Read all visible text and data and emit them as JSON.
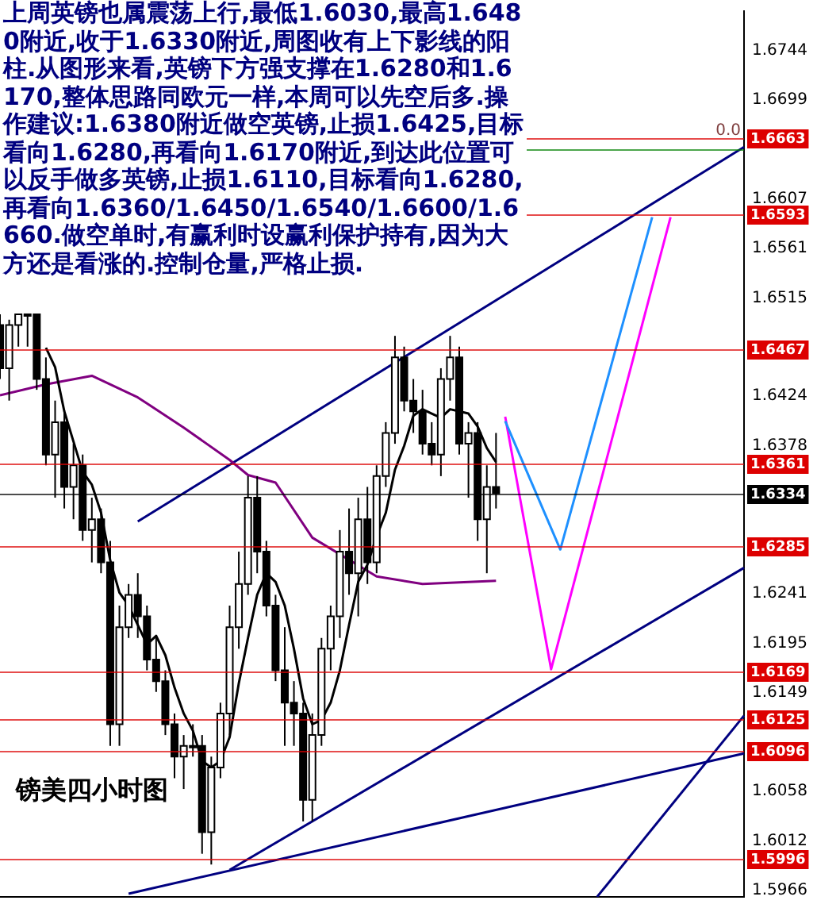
{
  "chart_data": {
    "type": "candlestick",
    "categories": [
      null,
      null,
      null,
      null,
      null,
      null,
      null,
      null,
      null,
      null,
      null,
      null,
      null,
      null,
      null,
      null,
      null,
      null,
      null,
      null,
      null,
      null,
      null,
      null,
      null,
      null,
      null,
      null,
      null,
      null,
      null,
      null,
      null,
      null,
      null,
      null,
      null,
      null,
      null,
      null,
      null,
      null,
      null,
      null,
      null,
      null,
      null,
      null,
      null,
      null,
      null,
      null,
      null,
      null,
      null,
      null,
      null,
      null,
      null,
      null,
      null,
      null,
      null,
      null,
      null,
      null,
      null,
      null,
      null,
      null,
      null,
      null,
      null,
      null,
      null,
      null,
      null,
      null,
      null,
      null,
      null,
      null
    ],
    "ohlc": [
      [
        1.649,
        1.65,
        1.644,
        1.645
      ],
      [
        1.645,
        1.6495,
        1.642,
        1.649
      ],
      [
        1.649,
        1.65,
        1.647,
        1.65
      ],
      [
        1.65,
        1.65,
        1.647,
        1.65
      ],
      [
        1.65,
        1.65,
        1.643,
        1.644
      ],
      [
        1.644,
        1.646,
        1.636,
        1.637
      ],
      [
        1.637,
        1.642,
        1.633,
        1.64
      ],
      [
        1.64,
        1.641,
        1.632,
        1.634
      ],
      [
        1.634,
        1.638,
        1.631,
        1.636
      ],
      [
        1.636,
        1.637,
        1.629,
        1.63
      ],
      [
        1.63,
        1.633,
        1.627,
        1.631
      ],
      [
        1.631,
        1.632,
        1.626,
        1.627
      ],
      [
        1.627,
        1.629,
        1.61,
        1.612
      ],
      [
        1.612,
        1.623,
        1.61,
        1.621
      ],
      [
        1.621,
        1.625,
        1.62,
        1.624
      ],
      [
        1.624,
        1.626,
        1.62,
        1.622
      ],
      [
        1.622,
        1.623,
        1.617,
        1.618
      ],
      [
        1.618,
        1.62,
        1.615,
        1.616
      ],
      [
        1.616,
        1.617,
        1.611,
        1.612
      ],
      [
        1.612,
        1.613,
        1.607,
        1.609
      ],
      [
        1.609,
        1.611,
        1.606,
        1.61
      ],
      [
        1.61,
        1.612,
        1.609,
        1.61
      ],
      [
        1.61,
        1.611,
        1.6,
        1.602
      ],
      [
        1.602,
        1.609,
        1.599,
        1.608
      ],
      [
        1.608,
        1.614,
        1.607,
        1.613
      ],
      [
        1.613,
        1.623,
        1.611,
        1.621
      ],
      [
        1.621,
        1.628,
        1.619,
        1.625
      ],
      [
        1.625,
        1.635,
        1.624,
        1.633
      ],
      [
        1.633,
        1.635,
        1.626,
        1.628
      ],
      [
        1.628,
        1.629,
        1.622,
        1.623
      ],
      [
        1.623,
        1.624,
        1.616,
        1.617
      ],
      [
        1.617,
        1.621,
        1.61,
        1.614
      ],
      [
        1.614,
        1.616,
        1.61,
        1.613
      ],
      [
        1.613,
        1.614,
        1.603,
        1.605
      ],
      [
        1.605,
        1.613,
        1.603,
        1.611
      ],
      [
        1.611,
        1.62,
        1.61,
        1.619
      ],
      [
        1.619,
        1.623,
        1.617,
        1.622
      ],
      [
        1.622,
        1.63,
        1.62,
        1.628
      ],
      [
        1.628,
        1.632,
        1.624,
        1.626
      ],
      [
        1.626,
        1.633,
        1.622,
        1.631
      ],
      [
        1.631,
        1.634,
        1.625,
        1.627
      ],
      [
        1.627,
        1.636,
        1.626,
        1.635
      ],
      [
        1.635,
        1.64,
        1.634,
        1.639
      ],
      [
        1.639,
        1.648,
        1.638,
        1.646
      ],
      [
        1.646,
        1.647,
        1.641,
        1.642
      ],
      [
        1.642,
        1.644,
        1.639,
        1.641
      ],
      [
        1.641,
        1.643,
        1.637,
        1.638
      ],
      [
        1.638,
        1.64,
        1.636,
        1.637
      ],
      [
        1.637,
        1.645,
        1.635,
        1.644
      ],
      [
        1.644,
        1.648,
        1.642,
        1.646
      ],
      [
        1.646,
        1.647,
        1.637,
        1.638
      ],
      [
        1.638,
        1.64,
        1.633,
        1.639
      ],
      [
        1.639,
        1.64,
        1.629,
        1.631
      ],
      [
        1.631,
        1.636,
        1.626,
        1.634
      ],
      [
        1.634,
        1.639,
        1.632,
        1.6334
      ],
      null,
      null,
      null,
      null,
      null,
      null,
      null,
      null,
      null,
      null,
      null,
      null,
      null,
      null,
      null,
      null,
      null,
      null,
      null,
      null,
      null,
      null,
      null,
      null,
      null,
      null,
      null
    ],
    "series": [
      {
        "type": "line",
        "color": "#000000",
        "values": [
          null,
          null,
          null,
          null,
          null,
          1.6469,
          1.6451,
          1.641,
          1.6382,
          1.6354,
          1.6342,
          1.6316,
          1.6272,
          1.6242,
          1.623,
          1.6212,
          1.6194,
          1.6202,
          1.6184,
          1.6154,
          1.613,
          1.6114,
          1.6086,
          1.608,
          1.6086,
          1.6108,
          1.6158,
          1.62,
          1.624,
          1.626,
          1.6252,
          1.623,
          1.619,
          1.6144,
          1.612,
          1.6124,
          1.614,
          1.617,
          1.6212,
          1.6252,
          1.6268,
          1.6294,
          1.6316,
          1.6356,
          1.6378,
          1.6406,
          1.6412,
          1.6408,
          1.6404,
          1.6412,
          1.641,
          1.6408,
          1.6396,
          1.6376,
          1.6363,
          null,
          null,
          null,
          null,
          null,
          null,
          null,
          null,
          null,
          null,
          null,
          null,
          null,
          null,
          null,
          null,
          null,
          null,
          null,
          null,
          null,
          null,
          null,
          null,
          null,
          null,
          null
        ]
      },
      {
        "type": "line",
        "color": "#800080",
        "values": [
          1.6425,
          null,
          null,
          null,
          null,
          1.6435,
          null,
          null,
          null,
          null,
          1.6443,
          null,
          null,
          null,
          null,
          1.6423,
          null,
          null,
          null,
          null,
          1.6395,
          null,
          null,
          null,
          null,
          1.6365,
          null,
          1.6351,
          null,
          null,
          1.6344,
          null,
          null,
          null,
          1.6293,
          null,
          null,
          null,
          null,
          null,
          null,
          1.6257,
          null,
          null,
          null,
          null,
          1.625,
          null,
          null,
          null,
          null,
          null,
          null,
          null,
          1.6253,
          null,
          null,
          null,
          null,
          null,
          null,
          null,
          null,
          null,
          null,
          null,
          null,
          null,
          null,
          null,
          null,
          null,
          null,
          null,
          null,
          null,
          null,
          null,
          null,
          null,
          null,
          null
        ]
      },
      {
        "type": "line",
        "color": "#000080",
        "values": [
          null,
          null,
          null,
          null,
          null,
          null,
          null,
          null,
          null,
          null,
          null,
          null,
          null,
          null,
          null,
          1.6308,
          null,
          null,
          null,
          null,
          null,
          null,
          null,
          null,
          null,
          null,
          null,
          null,
          null,
          null,
          null,
          null,
          null,
          null,
          null,
          null,
          null,
          null,
          null,
          null,
          null,
          null,
          null,
          null,
          null,
          null,
          null,
          null,
          null,
          null,
          null,
          null,
          null,
          null,
          null,
          null,
          null,
          null,
          null,
          null,
          null,
          null,
          null,
          null,
          null,
          null,
          null,
          null,
          null,
          null,
          null,
          null,
          null,
          null,
          null,
          null,
          null,
          null,
          null,
          null,
          null,
          1.6655
        ]
      },
      {
        "type": "line",
        "color": "#000080",
        "values": [
          null,
          null,
          null,
          null,
          null,
          null,
          null,
          null,
          null,
          null,
          null,
          null,
          null,
          null,
          null,
          null,
          null,
          null,
          null,
          null,
          null,
          null,
          null,
          null,
          null,
          1.5985,
          null,
          null,
          null,
          null,
          null,
          null,
          null,
          null,
          null,
          null,
          null,
          null,
          null,
          null,
          null,
          null,
          null,
          null,
          null,
          null,
          null,
          null,
          null,
          null,
          null,
          null,
          null,
          null,
          null,
          null,
          null,
          null,
          null,
          null,
          null,
          null,
          null,
          null,
          null,
          null,
          null,
          null,
          null,
          null,
          null,
          null,
          null,
          null,
          null,
          null,
          null,
          null,
          null,
          null,
          null,
          1.6265
        ]
      },
      {
        "type": "line",
        "color": "#000080",
        "values": [
          null,
          null,
          null,
          null,
          null,
          null,
          null,
          null,
          null,
          null,
          null,
          null,
          null,
          null,
          1.5963,
          null,
          null,
          null,
          null,
          null,
          null,
          null,
          null,
          null,
          null,
          null,
          null,
          null,
          null,
          null,
          null,
          null,
          null,
          null,
          null,
          null,
          null,
          null,
          null,
          null,
          null,
          null,
          null,
          null,
          null,
          null,
          null,
          null,
          null,
          null,
          null,
          null,
          null,
          null,
          null,
          null,
          null,
          null,
          null,
          null,
          null,
          null,
          null,
          null,
          null,
          null,
          null,
          null,
          null,
          null,
          null,
          null,
          null,
          null,
          null,
          null,
          null,
          null,
          null,
          null,
          null,
          1.6093
        ]
      },
      {
        "type": "line",
        "color": "#000080",
        "values": [
          null,
          null,
          null,
          null,
          null,
          null,
          null,
          null,
          null,
          null,
          null,
          null,
          null,
          null,
          null,
          null,
          null,
          null,
          null,
          null,
          null,
          null,
          null,
          null,
          null,
          null,
          null,
          null,
          null,
          null,
          null,
          null,
          null,
          null,
          null,
          null,
          null,
          null,
          null,
          null,
          null,
          null,
          null,
          null,
          null,
          null,
          null,
          null,
          null,
          null,
          null,
          null,
          null,
          null,
          null,
          null,
          null,
          null,
          null,
          null,
          null,
          null,
          null,
          null,
          null,
          1.596,
          null,
          null,
          null,
          null,
          null,
          null,
          null,
          null,
          null,
          null,
          null,
          null,
          null,
          null,
          null,
          1.6128
        ]
      },
      {
        "type": "line",
        "color": "#1e90ff",
        "values": [
          null,
          null,
          null,
          null,
          null,
          null,
          null,
          null,
          null,
          null,
          null,
          null,
          null,
          null,
          null,
          null,
          null,
          null,
          null,
          null,
          null,
          null,
          null,
          null,
          null,
          null,
          null,
          null,
          null,
          null,
          null,
          null,
          null,
          null,
          null,
          null,
          null,
          null,
          null,
          null,
          null,
          null,
          null,
          null,
          null,
          null,
          null,
          null,
          null,
          null,
          null,
          null,
          null,
          null,
          null,
          1.6401,
          null,
          null,
          null,
          null,
          null,
          1.6282,
          null,
          null,
          null,
          null,
          null,
          null,
          null,
          null,
          null,
          1.659,
          null,
          null,
          null,
          null,
          null,
          null,
          null,
          null,
          null,
          null
        ]
      },
      {
        "type": "line",
        "color": "#ff00ff",
        "values": [
          null,
          null,
          null,
          null,
          null,
          null,
          null,
          null,
          null,
          null,
          null,
          null,
          null,
          null,
          null,
          null,
          null,
          null,
          null,
          null,
          null,
          null,
          null,
          null,
          null,
          null,
          null,
          null,
          null,
          null,
          null,
          null,
          null,
          null,
          null,
          null,
          null,
          null,
          null,
          null,
          null,
          null,
          null,
          null,
          null,
          null,
          null,
          null,
          null,
          null,
          null,
          null,
          null,
          null,
          null,
          1.6405,
          null,
          null,
          null,
          null,
          1.6171,
          null,
          null,
          null,
          null,
          null,
          null,
          null,
          null,
          null,
          null,
          null,
          null,
          1.659,
          null,
          null,
          null,
          null,
          null,
          null,
          null,
          null
        ]
      }
    ],
    "ylim": [
      1.596,
      1.6781
    ],
    "yticks": [
      1.6744,
      1.6699,
      1.6607,
      1.6561,
      1.6515,
      1.6424,
      1.6378,
      1.6241,
      1.6195,
      1.6149,
      1.6058,
      1.6012,
      1.5966
    ],
    "tick_labels": "y",
    "ref_lines": [
      {
        "axis": "y",
        "value": 1.6663,
        "label": "1.6663",
        "color": "#dd0000"
      },
      {
        "axis": "y",
        "value": 1.6653,
        "label": null,
        "color": "#008000"
      },
      {
        "axis": "y",
        "value": 1.6593,
        "label": "1.6593",
        "color": "#dd0000"
      },
      {
        "axis": "y",
        "value": 1.6467,
        "label": "1.6467",
        "color": "#dd0000"
      },
      {
        "axis": "y",
        "value": 1.6361,
        "label": "1.6361",
        "color": "#dd0000"
      },
      {
        "axis": "y",
        "value": 1.6334,
        "label": "1.6334",
        "color": "#000000"
      },
      {
        "axis": "y",
        "value": 1.6285,
        "label": "1.6285",
        "color": "#dd0000"
      },
      {
        "axis": "y",
        "value": 1.6169,
        "label": "1.6169",
        "color": "#dd0000"
      },
      {
        "axis": "y",
        "value": 1.6125,
        "label": "1.6125",
        "color": "#dd0000"
      },
      {
        "axis": "y",
        "value": 1.6096,
        "label": "1.6096",
        "color": "#dd0000"
      },
      {
        "axis": "y",
        "value": 1.5996,
        "label": "1.5996",
        "color": "#dd0000"
      }
    ],
    "annotations": [
      "上周英镑也属震荡上行,最低1.6030,最高1.6480附近,收于1.6330附近,周图收有上下影线的阳柱.从图形来看,英镑下方强支撑在1.6280和1.6170,整体思路同欧元一样,本周可以先空后多.操作建议:1.6380附近做空英镑,止损1.6425,目标看向1.6280,再看向1.6170附近,到达此位置可以反手做多英镑,止损1.6110,目标看向1.6280,再看向1.6360/1.6450/1.6540/1.6600/1.6660.做空单时,有赢利时设赢利保护持有,因为大方还是看涨的.控制仓量,严格止损.",
      "镑美四小时图",
      {
        "text": "0.0",
        "y": 1.6663
      }
    ],
    "grid": false,
    "legend": false
  }
}
